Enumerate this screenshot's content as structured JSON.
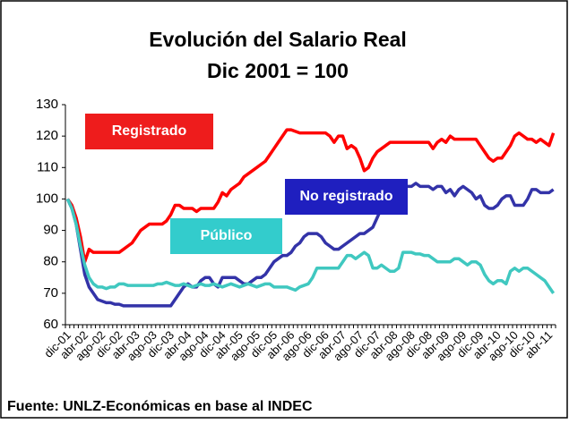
{
  "chart_data": {
    "type": "line",
    "title": "Evolución del Salario Real",
    "subtitle": "Dic 2001 = 100",
    "annotations": [
      "Fuente: UNLZ-Económicas en base al INDEC"
    ],
    "categories": [
      "dic-01",
      null,
      null,
      null,
      "abr-02",
      null,
      null,
      null,
      "ago-02",
      null,
      null,
      null,
      "dic-02",
      null,
      null,
      null,
      "abr-03",
      null,
      null,
      null,
      "ago-03",
      null,
      null,
      null,
      "dic-03",
      null,
      null,
      null,
      "abr-04",
      null,
      null,
      null,
      "ago-04",
      null,
      null,
      null,
      "dic-04",
      null,
      null,
      null,
      "abr-05",
      null,
      null,
      null,
      "ago-05",
      null,
      null,
      null,
      "dic-05",
      null,
      null,
      null,
      "abr-06",
      null,
      null,
      null,
      "ago-06",
      null,
      null,
      null,
      "dic-06",
      null,
      null,
      null,
      "abr-07",
      null,
      null,
      null,
      "ago-07",
      null,
      null,
      null,
      "dic-07",
      null,
      null,
      null,
      "abr-08",
      null,
      null,
      null,
      "ago-08",
      null,
      null,
      null,
      "dic-08",
      null,
      null,
      null,
      "abr-09",
      null,
      null,
      null,
      "ago-09",
      null,
      null,
      null,
      "dic-09",
      null,
      null,
      null,
      "abr-10",
      null,
      null,
      null,
      "ago-10",
      null,
      null,
      null,
      "dic-10",
      null,
      null,
      null,
      "abr-11",
      null
    ],
    "series": [
      {
        "name": "Registrado",
        "color": "#ff0000",
        "values": [
          100,
          98,
          94,
          88,
          80,
          84,
          83,
          83,
          83,
          83,
          83,
          83,
          83,
          84,
          85,
          86,
          88,
          90,
          91,
          92,
          92,
          92,
          92,
          93,
          95,
          98,
          98,
          97,
          97,
          97,
          96,
          97,
          97,
          97,
          97,
          99,
          102,
          101,
          103,
          104,
          105,
          107,
          108,
          109,
          110,
          111,
          112,
          114,
          116,
          118,
          120,
          122,
          122,
          121.5,
          121,
          121,
          121,
          121,
          121,
          121,
          121,
          120,
          118,
          120,
          120,
          116,
          117,
          116,
          113,
          109,
          110,
          113,
          115,
          116,
          117,
          118,
          118,
          118,
          118,
          118,
          118,
          118,
          118,
          118,
          118,
          116,
          118,
          119,
          118,
          120,
          119,
          119,
          119,
          119,
          119,
          119,
          117,
          115,
          113,
          112,
          113,
          113,
          115,
          117,
          120,
          121,
          120,
          119,
          119,
          118,
          119,
          118,
          117,
          121
        ]
      },
      {
        "name": "No registrado",
        "color": "#3333a8",
        "values": [
          100,
          97,
          92,
          84,
          76,
          72,
          70,
          68,
          67.5,
          67,
          67,
          66.5,
          66.5,
          66,
          66,
          66,
          66,
          66,
          66,
          66,
          66,
          66,
          66,
          66,
          66,
          68,
          70,
          72,
          73,
          72,
          72,
          74,
          75,
          75,
          73,
          72,
          75,
          75,
          75,
          75,
          74,
          73,
          73,
          74,
          75,
          75,
          76,
          78,
          80,
          81,
          82,
          82,
          83,
          85,
          86,
          88,
          89,
          89,
          89,
          88,
          86,
          85,
          84,
          84,
          85,
          86,
          87,
          88,
          89,
          89,
          90,
          91,
          94,
          97,
          98,
          100,
          102,
          105,
          105,
          104,
          104,
          105,
          104,
          104,
          104,
          103,
          104,
          104,
          102,
          103,
          101,
          103,
          104,
          103,
          102,
          100,
          101,
          98,
          97,
          97,
          98,
          100,
          101,
          101,
          98,
          98,
          98,
          100,
          103,
          103,
          102,
          102,
          102,
          103
        ]
      },
      {
        "name": "Público",
        "color": "#40c8c0",
        "values": [
          100,
          97,
          92,
          85,
          79,
          75,
          73,
          72,
          72,
          71.5,
          72,
          72,
          73,
          73,
          72.5,
          72.5,
          72.5,
          72.5,
          72.5,
          72.5,
          72.5,
          73,
          73,
          73.5,
          73,
          72.5,
          72.5,
          73,
          72.5,
          72,
          72.5,
          73,
          72.5,
          72.5,
          73,
          72.5,
          72,
          72.5,
          73,
          72.5,
          72,
          72.5,
          73,
          72.5,
          72,
          72.5,
          73,
          73,
          72,
          72,
          72,
          72,
          71.5,
          71,
          72,
          72.5,
          73,
          75,
          78,
          78,
          78,
          78,
          78,
          78,
          80,
          82,
          82,
          81,
          82,
          83,
          82,
          78,
          78,
          79,
          78,
          77,
          77,
          78,
          83,
          83,
          83,
          82.5,
          82.5,
          82,
          82,
          81,
          80,
          80,
          80,
          80,
          81,
          81,
          80,
          79,
          80,
          80,
          79,
          76,
          74,
          73,
          74,
          74,
          73,
          77,
          78,
          77,
          78,
          78,
          77,
          76,
          75,
          74,
          72,
          70
        ]
      }
    ],
    "ylim": [
      60,
      130
    ],
    "yticks": [
      60,
      70,
      80,
      90,
      100,
      110,
      120,
      130
    ]
  }
}
